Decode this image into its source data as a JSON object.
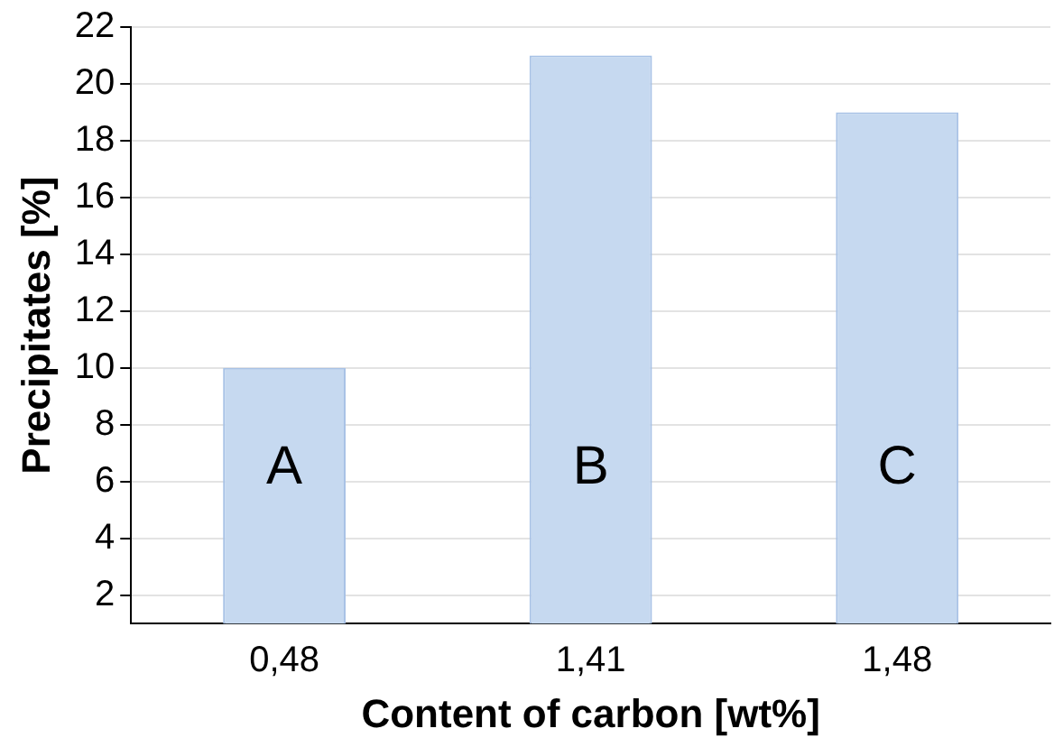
{
  "chart_data": {
    "type": "bar",
    "xlabel": "Content of carbon [wt%]",
    "ylabel": "Precipitates [%]",
    "categories": [
      "0,48",
      "1,41",
      "1,48"
    ],
    "values": [
      10,
      21,
      19
    ],
    "color": "#c6d9f0",
    "ylim": [
      1,
      22
    ],
    "yticks": [
      2,
      4,
      6,
      8,
      10,
      12,
      14,
      16,
      18,
      20,
      22
    ],
    "grid": "y",
    "annotations": [
      "A",
      "B",
      "C"
    ]
  }
}
